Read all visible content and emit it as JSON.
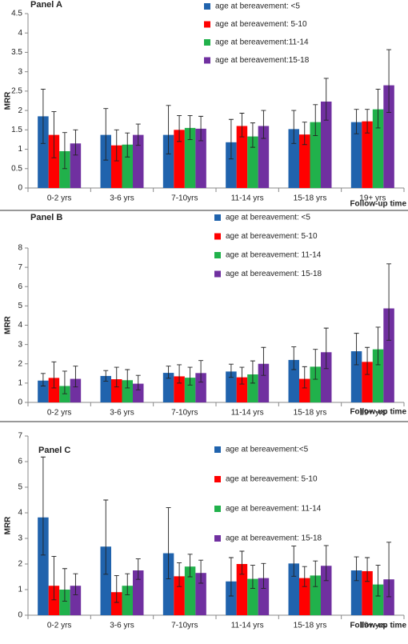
{
  "chart_data": [
    {
      "type": "bar",
      "title": "Panel A",
      "ylabel": "MRR",
      "xlabel": "Follow-up time",
      "categories": [
        "0-2 yrs",
        "3-6 yrs",
        "7-10yrs",
        "11-14 yrs",
        "15-18 yrs",
        "19+ yrs"
      ],
      "ylim": [
        0,
        4.5
      ],
      "yticks": [
        0,
        0.5,
        1,
        1.5,
        2,
        2.5,
        3,
        3.5,
        4,
        4.5
      ],
      "series": [
        {
          "name": "age at bereavement: <5",
          "color": "#2063ad",
          "values": [
            1.85,
            1.37,
            1.37,
            1.18,
            1.52,
            1.7
          ],
          "lower": [
            1.15,
            0.72,
            0.88,
            0.75,
            1.15,
            1.4
          ],
          "upper": [
            2.55,
            2.05,
            2.13,
            1.77,
            2.0,
            2.03
          ]
        },
        {
          "name": "age at bereavement: 5-10",
          "color": "#ff0000",
          "values": [
            1.37,
            1.1,
            1.5,
            1.6,
            1.38,
            1.72
          ],
          "lower": [
            0.78,
            0.7,
            1.2,
            1.32,
            1.12,
            1.42
          ],
          "upper": [
            1.97,
            1.5,
            1.87,
            1.93,
            1.7,
            2.03
          ]
        },
        {
          "name": "age at bereavement:11-14",
          "color": "#21b14b",
          "values": [
            0.95,
            1.12,
            1.55,
            1.33,
            1.7,
            2.03
          ],
          "lower": [
            0.5,
            0.8,
            1.25,
            1.05,
            1.35,
            1.55
          ],
          "upper": [
            1.43,
            1.42,
            1.87,
            1.68,
            2.15,
            2.55
          ]
        },
        {
          "name": "age at bereavement:15-18",
          "color": "#7030a0",
          "values": [
            1.15,
            1.37,
            1.53,
            1.6,
            2.23,
            2.65
          ],
          "lower": [
            0.85,
            1.1,
            1.22,
            1.28,
            1.75,
            1.95
          ],
          "upper": [
            1.5,
            1.65,
            1.85,
            2.0,
            2.83,
            3.57
          ]
        }
      ]
    },
    {
      "type": "bar",
      "title": "Panel B",
      "ylabel": "MRR",
      "xlabel": "Follow-up time",
      "categories": [
        "0-2 yrs",
        "3-6 yrs",
        "7-10yrs",
        "11-14 yrs",
        "15-18 yrs",
        "19+ yrs"
      ],
      "ylim": [
        0,
        8
      ],
      "yticks": [
        0,
        1,
        2,
        3,
        4,
        5,
        6,
        7,
        8
      ],
      "series": [
        {
          "name": "age at bereavement: <5",
          "color": "#2063ad",
          "values": [
            1.13,
            1.37,
            1.53,
            1.6,
            2.2,
            2.65
          ],
          "lower": [
            0.85,
            1.1,
            1.25,
            1.3,
            1.7,
            1.95
          ],
          "upper": [
            1.5,
            1.65,
            1.88,
            1.98,
            2.88,
            3.58
          ]
        },
        {
          "name": "age at bereavement: 5-10",
          "color": "#ff0000",
          "values": [
            1.27,
            1.2,
            1.35,
            1.3,
            1.22,
            2.1
          ],
          "lower": [
            0.75,
            0.8,
            1.0,
            0.95,
            0.75,
            1.45
          ],
          "upper": [
            2.1,
            1.82,
            1.95,
            1.82,
            1.85,
            2.85
          ]
        },
        {
          "name": "age at bereavement: 11-14",
          "color": "#21b14b",
          "values": [
            0.85,
            1.15,
            1.28,
            1.45,
            1.85,
            2.75
          ],
          "lower": [
            0.45,
            0.75,
            0.9,
            1.0,
            1.2,
            1.95
          ],
          "upper": [
            1.62,
            1.7,
            1.82,
            2.15,
            2.75,
            3.9
          ]
        },
        {
          "name": "age at bereavement: 15-18",
          "color": "#7030a0",
          "values": [
            1.22,
            0.97,
            1.52,
            2.0,
            2.6,
            4.87
          ],
          "lower": [
            0.8,
            0.65,
            1.05,
            1.4,
            1.75,
            3.22
          ],
          "upper": [
            1.88,
            1.4,
            2.17,
            2.85,
            3.85,
            7.18
          ]
        }
      ]
    },
    {
      "type": "bar",
      "title": "Panel C",
      "ylabel": "MRR",
      "xlabel": "Follow-up time",
      "categories": [
        "0-2 yrs",
        "3-6 yrs",
        "7-10yrs",
        "11-14 yrs",
        "15-18 yrs",
        "19+ yrs"
      ],
      "ylim": [
        0,
        7
      ],
      "yticks": [
        0,
        1,
        2,
        3,
        4,
        5,
        6,
        7
      ],
      "series": [
        {
          "name": "age at bereavement:<5",
          "color": "#2063ad",
          "values": [
            3.82,
            2.68,
            2.42,
            1.32,
            2.02,
            1.75
          ],
          "lower": [
            2.35,
            1.6,
            1.42,
            0.75,
            1.52,
            1.35
          ],
          "upper": [
            6.18,
            4.5,
            4.2,
            2.25,
            2.7,
            2.28
          ]
        },
        {
          "name": "age at bereavement: 5-10",
          "color": "#ff0000",
          "values": [
            1.15,
            0.9,
            1.52,
            2.0,
            1.45,
            1.72
          ],
          "lower": [
            0.6,
            0.5,
            1.12,
            1.6,
            1.12,
            1.32
          ],
          "upper": [
            2.3,
            1.55,
            2.05,
            2.5,
            1.9,
            2.25
          ]
        },
        {
          "name": "age at bereavement: 11-14",
          "color": "#21b14b",
          "values": [
            1.0,
            1.15,
            1.9,
            1.42,
            1.55,
            1.2
          ],
          "lower": [
            0.55,
            0.8,
            1.5,
            1.05,
            1.12,
            0.75
          ],
          "upper": [
            1.82,
            1.62,
            2.38,
            1.95,
            2.12,
            1.95
          ]
        },
        {
          "name": "age at bereavement: 15-18",
          "color": "#7030a0",
          "values": [
            1.15,
            1.75,
            1.65,
            1.45,
            1.93,
            1.4
          ],
          "lower": [
            0.8,
            1.4,
            1.25,
            1.05,
            1.35,
            0.72
          ],
          "upper": [
            1.62,
            2.2,
            2.15,
            2.02,
            2.72,
            2.85
          ]
        }
      ]
    }
  ]
}
